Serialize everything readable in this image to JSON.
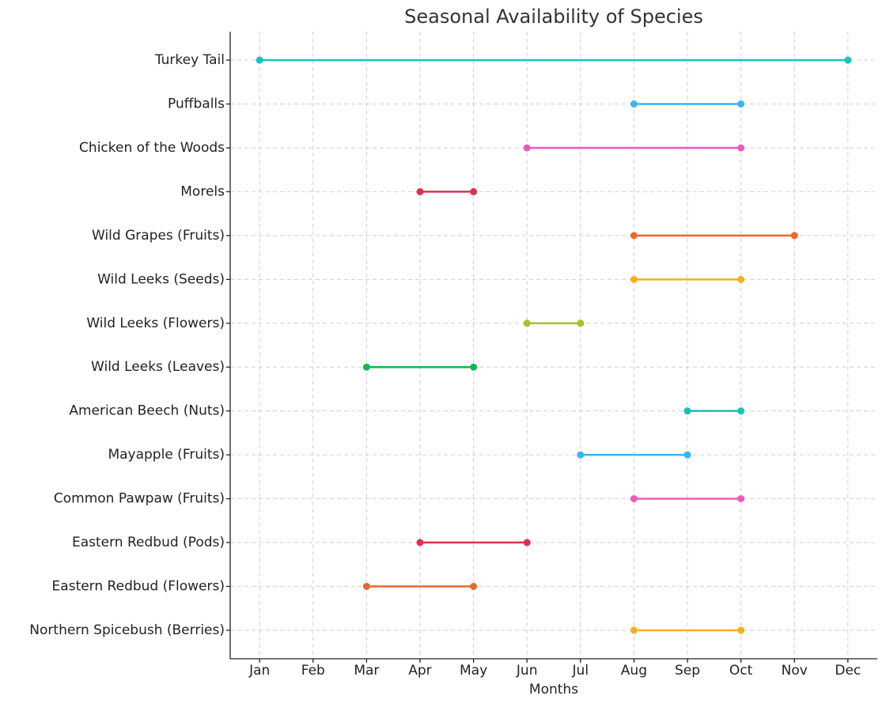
{
  "chart_data": {
    "type": "dumbbell",
    "title": "Seasonal Availability of Species",
    "x_label": "Months",
    "categories": [
      "Turkey Tail",
      "Puffballs",
      "Chicken of the Woods",
      "Morels",
      "Wild Grapes (Fruits)",
      "Wild Leeks (Seeds)",
      "Wild Leeks (Flowers)",
      "Wild Leeks (Leaves)",
      "American Beech (Nuts)",
      "Mayapple (Fruits)",
      "Common Pawpaw (Fruits)",
      "Eastern Redbud (Pods)",
      "Eastern Redbud (Flowers)",
      "Northern Spicebush (Berries)"
    ],
    "start": [
      1,
      8,
      6,
      4,
      8,
      8,
      6,
      3,
      9,
      7,
      8,
      4,
      3,
      8
    ],
    "end": [
      12,
      10,
      10,
      5,
      11,
      10,
      7,
      5,
      10,
      9,
      10,
      6,
      5,
      10
    ],
    "colors": [
      "#17c3c3",
      "#3bb4ef",
      "#e85cc1",
      "#e0304f",
      "#e8692a",
      "#f5b01a",
      "#a2c52a",
      "#15b84b",
      "#17c3b4",
      "#3bb4ef",
      "#e85cc1",
      "#e0304f",
      "#e8692a",
      "#f5b01a"
    ],
    "xlim": [
      0.45,
      12.55
    ],
    "xticks": [
      {
        "value": 1,
        "label": "Jan"
      },
      {
        "value": 2,
        "label": "Feb"
      },
      {
        "value": 3,
        "label": "Mar"
      },
      {
        "value": 4,
        "label": "Apr"
      },
      {
        "value": 5,
        "label": "May"
      },
      {
        "value": 6,
        "label": "Jun"
      },
      {
        "value": 7,
        "label": "Jul"
      },
      {
        "value": 8,
        "label": "Aug"
      },
      {
        "value": 9,
        "label": "Sep"
      },
      {
        "value": 10,
        "label": "Oct"
      },
      {
        "value": 11,
        "label": "Nov"
      },
      {
        "value": 12,
        "label": "Dec"
      }
    ],
    "grid": true
  }
}
